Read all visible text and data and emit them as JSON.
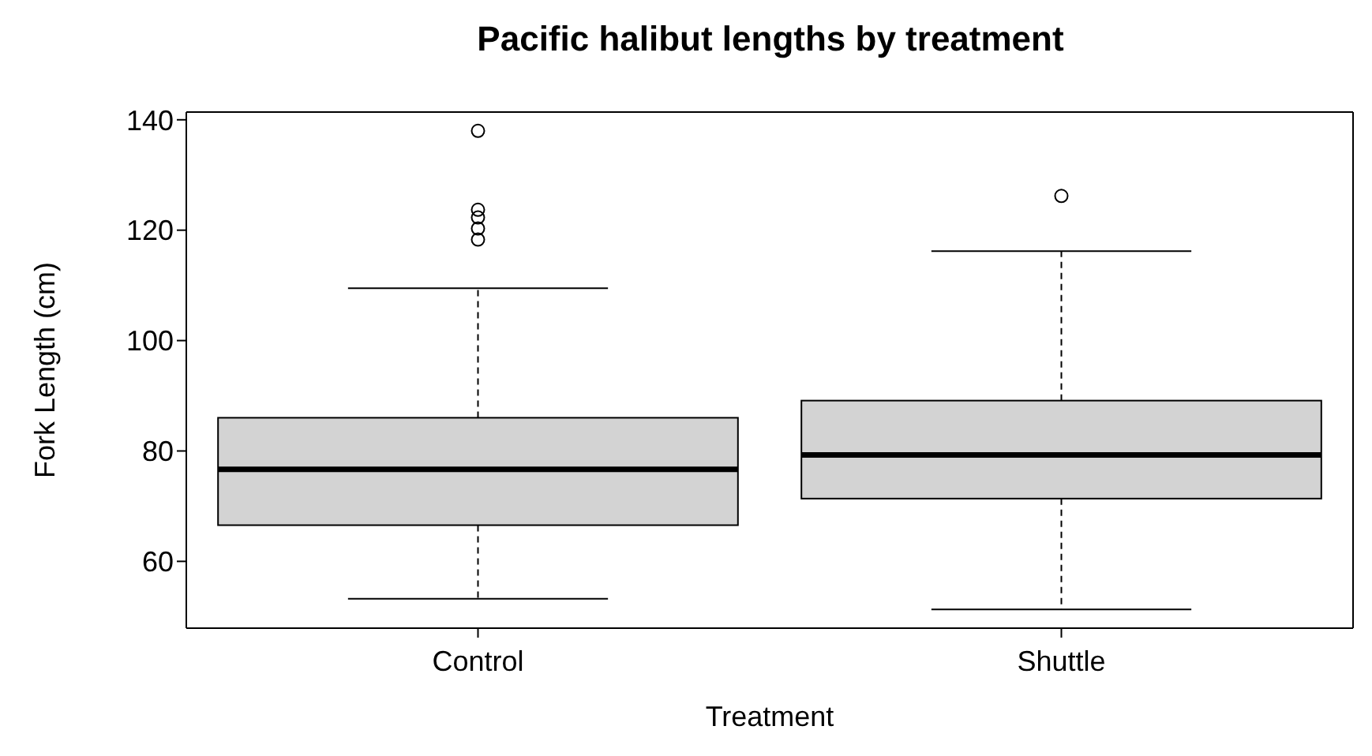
{
  "chart_data": {
    "type": "box",
    "title": "Pacific halibut lengths by treatment",
    "xlabel": "Treatment",
    "ylabel": "Fork Length (cm)",
    "categories": [
      "Control",
      "Shuttle"
    ],
    "boxes": [
      {
        "low": 53.2,
        "q1": 66.5,
        "median": 76.6,
        "q3": 85.9,
        "high": 109.3,
        "outliers": [
          138,
          123.7,
          122.3,
          120.3,
          118.3
        ]
      },
      {
        "low": 51.3,
        "q1": 71.3,
        "median": 79.2,
        "q3": 89,
        "high": 116,
        "outliers": [
          126.2
        ]
      }
    ],
    "color": "#d3d3d3",
    "ylim": [
      47.9,
      141.4
    ],
    "yticks": [
      60,
      80,
      100,
      120,
      140
    ],
    "marker": "circle"
  }
}
